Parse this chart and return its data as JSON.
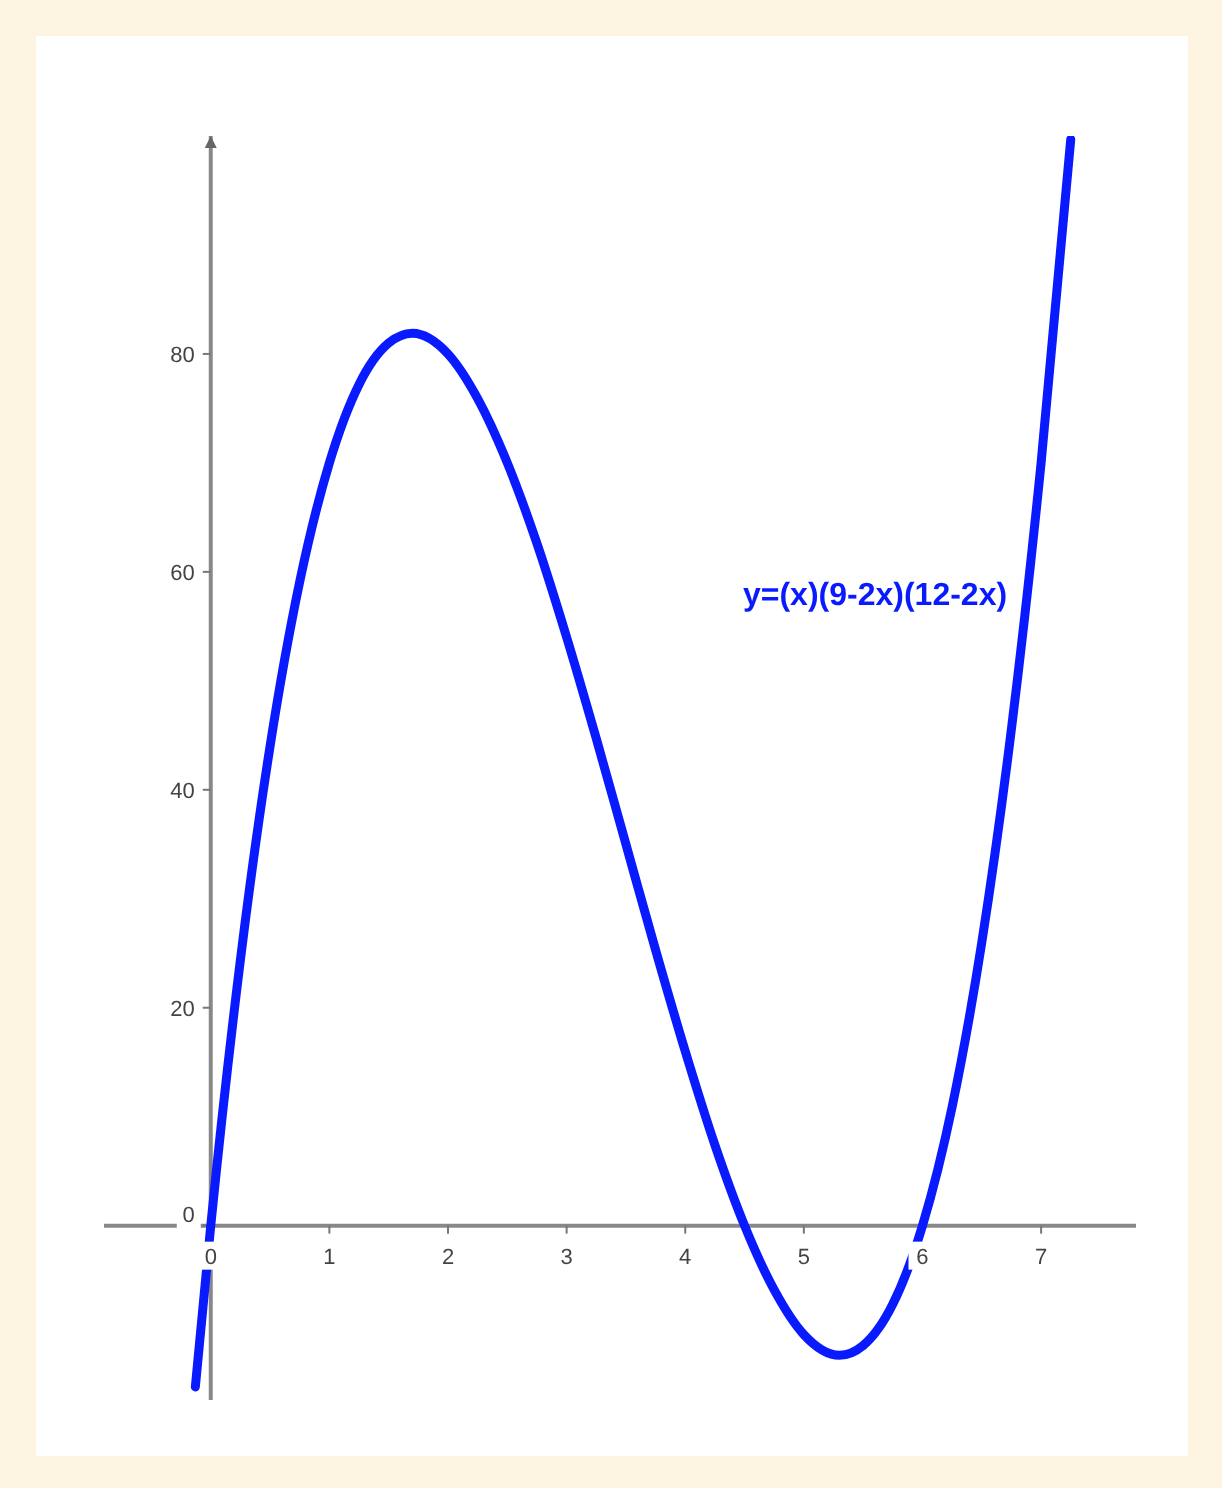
{
  "chart_data": {
    "type": "line",
    "annotations": [
      "y=(x)(9-2x)(12-2x)"
    ],
    "x": [
      -0.13,
      0,
      0.25,
      0.5,
      0.75,
      1,
      1.25,
      1.5,
      1.7,
      2,
      2.25,
      2.5,
      2.75,
      3,
      3.25,
      3.5,
      3.75,
      4,
      4.25,
      4.5,
      4.75,
      5,
      5.3,
      5.5,
      5.75,
      6,
      6.25,
      6.5,
      6.75,
      7,
      7.25
    ],
    "series": [
      {
        "color": "#0a1aff",
        "values": [
          -14.8,
          0,
          24.4,
          44,
          59.1,
          70,
          77.2,
          81,
          81.9,
          80,
          75.9,
          70,
          62.6,
          54,
          44.7,
          35,
          25.3,
          16,
          7.4,
          0,
          -5.9,
          -10,
          -11.9,
          -11,
          -7.2,
          0,
          10.9,
          26,
          45.6,
          70,
          99.7
        ]
      }
    ],
    "xlim": [
      -0.9,
      7.8
    ],
    "ylim": [
      -16,
      100
    ],
    "xticks": [
      0,
      1,
      2,
      3,
      4,
      5,
      6,
      7
    ],
    "yticks": [
      0,
      20,
      40,
      60,
      80
    ],
    "grid": false,
    "legend": false,
    "marker": "none",
    "line_style": "solid"
  }
}
